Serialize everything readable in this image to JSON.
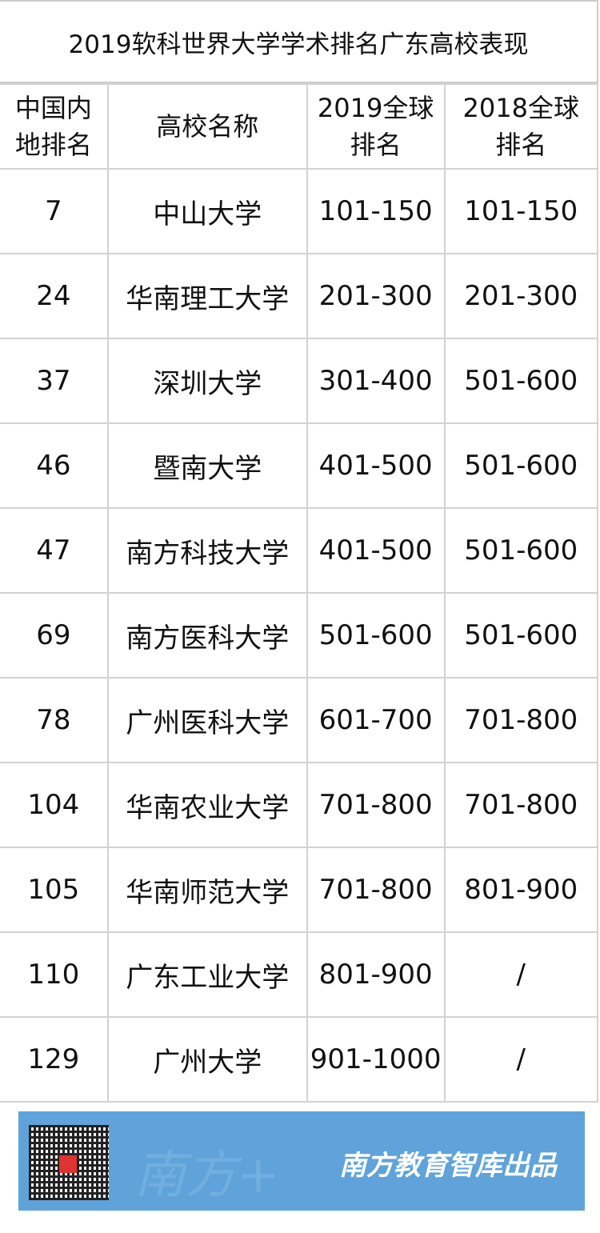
{
  "title": "2019软科世界大学学术排名广东高校表现",
  "headers": [
    "中国内地排名",
    "高校名称",
    "2019全球排名",
    "2018全球排名"
  ],
  "rows": [
    [
      "7",
      "中山大学",
      "101-150",
      "101-150"
    ],
    [
      "24",
      "华南理工大学",
      "201-300",
      "201-300"
    ],
    [
      "37",
      "深圳大学",
      "301-400",
      "501-600"
    ],
    [
      "46",
      "暨南大学",
      "401-500",
      "501-600"
    ],
    [
      "47",
      "南方科技大学",
      "401-500",
      "501-600"
    ],
    [
      "69",
      "南方医科大学",
      "501-600",
      "501-600"
    ],
    [
      "78",
      "广州医科大学",
      "601-700",
      "701-800"
    ],
    [
      "104",
      "华南农业大学",
      "701-800",
      "701-800"
    ],
    [
      "105",
      "华南师范大学",
      "701-800",
      "801-900"
    ],
    [
      "110",
      "广东工业大学",
      "801-900",
      "/"
    ],
    [
      "129",
      "广州大学",
      "901-1000",
      "/"
    ]
  ],
  "footer": {
    "brand": "南方教育智库出品",
    "watermark": "南方+",
    "banner_color": "#5fa3da",
    "qr_icon": "qr-code-icon"
  }
}
